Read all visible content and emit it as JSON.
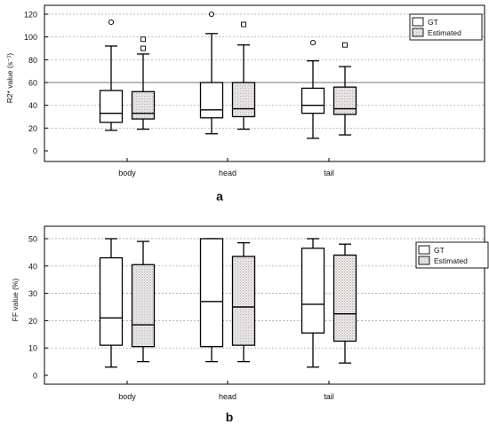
{
  "colors": {
    "gt_fill": "#ffffff",
    "estimated_fill": "#e8e4e4",
    "stroke": "#000000",
    "grid": "#9a9a9a"
  },
  "chart_data": [
    {
      "type": "box",
      "panel_label": "a",
      "title": "",
      "xlabel": "",
      "ylabel": "R2* value (s⁻¹)",
      "ylim": [
        -10,
        125
      ],
      "yticks": [
        0,
        20,
        40,
        60,
        80,
        100,
        120
      ],
      "grid": "horizontal dotted lines at 20, 40, 60, 80, 100 (plus solid line at 60)",
      "legend_position": "top-right",
      "categories": [
        "body",
        "head",
        "tail"
      ],
      "series": [
        {
          "name": "GT",
          "marker": "circle",
          "boxes": [
            {
              "min": 18,
              "q1": 25,
              "median": 33,
              "q3": 53,
              "max": 92,
              "outliers": [
                113
              ]
            },
            {
              "min": 15,
              "q1": 29,
              "median": 36,
              "q3": 60,
              "max": 103,
              "outliers": [
                120
              ]
            },
            {
              "min": 11,
              "q1": 33,
              "median": 40,
              "q3": 55,
              "max": 79,
              "outliers": [
                95
              ]
            }
          ]
        },
        {
          "name": "Estimated",
          "marker": "square",
          "boxes": [
            {
              "min": 19,
              "q1": 28,
              "median": 33,
              "q3": 52,
              "max": 85,
              "outliers": [
                90,
                98
              ]
            },
            {
              "min": 19,
              "q1": 30,
              "median": 37,
              "q3": 60,
              "max": 93,
              "outliers": [
                111
              ]
            },
            {
              "min": 14,
              "q1": 32,
              "median": 37,
              "q3": 56,
              "max": 74,
              "outliers": [
                93
              ]
            }
          ]
        }
      ]
    },
    {
      "type": "box",
      "panel_label": "b",
      "title": "",
      "xlabel": "",
      "ylabel": "FF value (%)",
      "ylim": [
        -3,
        52
      ],
      "yticks": [
        0,
        10,
        20,
        30,
        40,
        50
      ],
      "grid": "horizontal dotted lines at 10, 20, 30, 40, 50",
      "legend_position": "top-right",
      "categories": [
        "body",
        "head",
        "tail"
      ],
      "series": [
        {
          "name": "GT",
          "marker": "circle",
          "boxes": [
            {
              "min": 3,
              "q1": 11,
              "median": 21,
              "q3": 43,
              "max": 50,
              "outliers": []
            },
            {
              "min": 5,
              "q1": 10.5,
              "median": 27,
              "q3": 50,
              "max": 50,
              "outliers": []
            },
            {
              "min": 3,
              "q1": 15.5,
              "median": 26,
              "q3": 46.5,
              "max": 50,
              "outliers": []
            }
          ]
        },
        {
          "name": "Estimated",
          "marker": "square",
          "boxes": [
            {
              "min": 5,
              "q1": 10.5,
              "median": 18.5,
              "q3": 40.5,
              "max": 49,
              "outliers": []
            },
            {
              "min": 5,
              "q1": 11,
              "median": 25,
              "q3": 43.5,
              "max": 48.5,
              "outliers": []
            },
            {
              "min": 4.5,
              "q1": 12.5,
              "median": 22.5,
              "q3": 44,
              "max": 48,
              "outliers": []
            }
          ]
        }
      ]
    }
  ]
}
